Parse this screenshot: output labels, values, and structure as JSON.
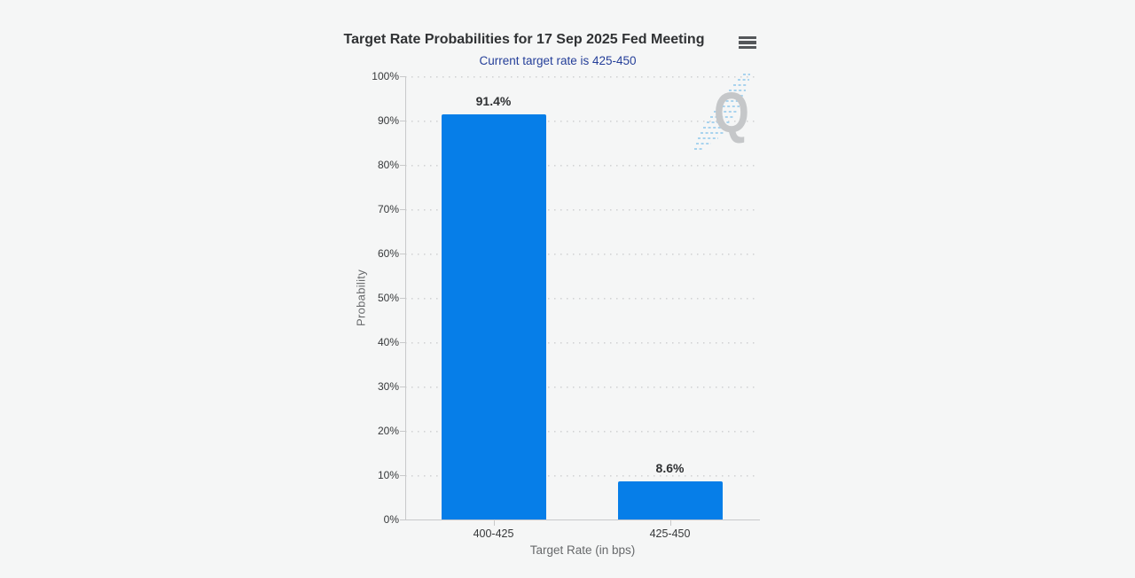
{
  "chart": {
    "title": "Target Rate Probabilities for 17 Sep 2025 Fed Meeting",
    "subtitle": "Current target rate is 425-450",
    "watermark_letter": "Q",
    "menu_icon": "hamburger-icon"
  },
  "chart_data": {
    "type": "bar",
    "title": "Target Rate Probabilities for 17 Sep 2025 Fed Meeting",
    "subtitle": "Current target rate is 425-450",
    "categories": [
      "400-425",
      "425-450"
    ],
    "values": [
      91.4,
      8.6
    ],
    "data_labels": [
      "91.4%",
      "8.6%"
    ],
    "xlabel": "Target Rate (in bps)",
    "ylabel": "Probability",
    "ylim": [
      0,
      100
    ],
    "ytick_step": 10,
    "ytick_labels": [
      "0%",
      "10%",
      "20%",
      "30%",
      "40%",
      "50%",
      "60%",
      "70%",
      "80%",
      "90%",
      "100%"
    ],
    "grid": "dotted-horizontal",
    "legend": "none",
    "colors": {
      "background": "#f5f6f6",
      "bar": "#067ee8",
      "title": "#303234",
      "subtitle": "#253f99",
      "axis_labels": "#37393b",
      "axis_titles": "#67696b",
      "grid_line": "#d2d3d4",
      "axis_line": "#c8c9ca",
      "menu_icon": "#54575a",
      "watermark_q": "#c5c7c9",
      "watermark_stripes": "#a8d3ee"
    }
  }
}
